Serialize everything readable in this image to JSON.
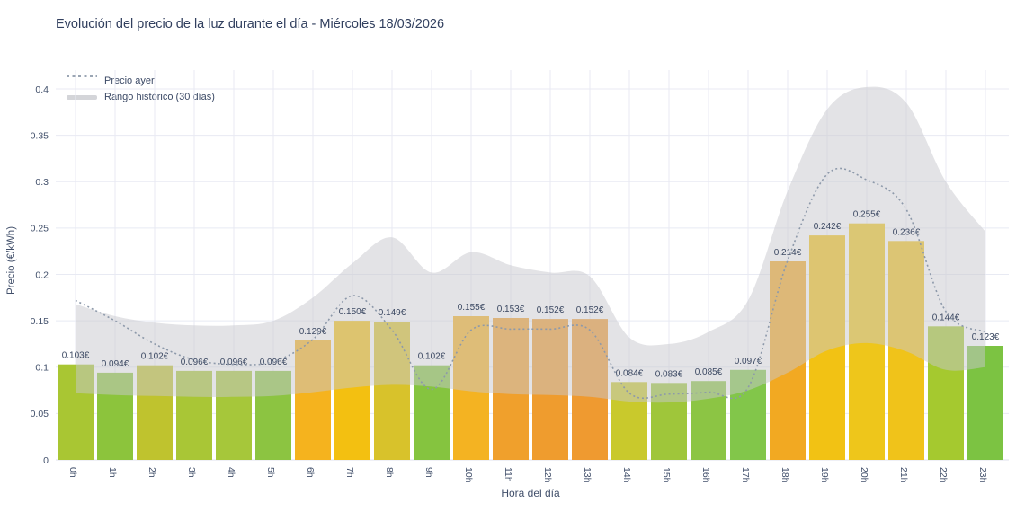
{
  "chart_data": {
    "type": "bar",
    "title": "Evolución del precio de la luz durante el día - Miércoles 18/03/2026",
    "xlabel": "Hora del día",
    "ylabel": "Precio (€/kWh)",
    "ylim": [
      0,
      0.42
    ],
    "grid": true,
    "legend_position": "top-left",
    "yticks": [
      0,
      0.05,
      0.1,
      0.15,
      0.2,
      0.25,
      0.3,
      0.35,
      0.4
    ],
    "ytick_labels": [
      "0",
      "0.05",
      "0.1",
      "0.15",
      "0.2",
      "0.25",
      "0.3",
      "0.35",
      "0.4"
    ],
    "categories": [
      "0h",
      "1h",
      "2h",
      "3h",
      "4h",
      "5h",
      "6h",
      "7h",
      "8h",
      "9h",
      "10h",
      "11h",
      "12h",
      "13h",
      "14h",
      "15h",
      "16h",
      "17h",
      "18h",
      "19h",
      "20h",
      "21h",
      "22h",
      "23h"
    ],
    "values": [
      0.103,
      0.094,
      0.102,
      0.096,
      0.096,
      0.096,
      0.129,
      0.15,
      0.149,
      0.102,
      0.155,
      0.153,
      0.152,
      0.152,
      0.084,
      0.083,
      0.085,
      0.097,
      0.214,
      0.242,
      0.255,
      0.236,
      0.144,
      0.123
    ],
    "value_labels": [
      "0.103€",
      "0.094€",
      "0.102€",
      "0.096€",
      "0.096€",
      "0.096€",
      "0.129€",
      "0.150€",
      "0.149€",
      "0.102€",
      "0.155€",
      "0.153€",
      "0.152€",
      "0.152€",
      "0.084€",
      "0.083€",
      "0.085€",
      "0.097€",
      "0.214€",
      "0.242€",
      "0.255€",
      "0.236€",
      "0.144€",
      "0.123€"
    ],
    "bar_colors": [
      "#a9c633",
      "#8cc43c",
      "#bfc32e",
      "#a9c636",
      "#a6c73a",
      "#8cc441",
      "#f5b31e",
      "#f3c011",
      "#d8c22b",
      "#85c43f",
      "#f4b322",
      "#f0a02c",
      "#ef9c2e",
      "#ef9a30",
      "#c9c92c",
      "#9fc63a",
      "#8cc544",
      "#82c64a",
      "#f2a922",
      "#f2c214",
      "#eec61b",
      "#f0c31a",
      "#a5c92f",
      "#7cc342"
    ],
    "series": [
      {
        "name": "Precio ayer",
        "type": "line-dotted",
        "values": [
          0.172,
          0.15,
          0.125,
          0.108,
          0.103,
          0.106,
          0.13,
          0.177,
          0.14,
          0.076,
          0.14,
          0.141,
          0.141,
          0.14,
          0.072,
          0.071,
          0.073,
          0.078,
          0.215,
          0.308,
          0.302,
          0.27,
          0.16,
          0.138
        ]
      },
      {
        "name": "Rango histórico (30 días)",
        "type": "band",
        "upper": [
          0.168,
          0.155,
          0.148,
          0.145,
          0.145,
          0.15,
          0.175,
          0.212,
          0.24,
          0.202,
          0.224,
          0.21,
          0.202,
          0.198,
          0.132,
          0.125,
          0.138,
          0.172,
          0.29,
          0.378,
          0.402,
          0.385,
          0.3,
          0.246
        ],
        "lower": [
          0.072,
          0.07,
          0.069,
          0.068,
          0.068,
          0.069,
          0.073,
          0.078,
          0.081,
          0.079,
          0.074,
          0.071,
          0.07,
          0.068,
          0.063,
          0.062,
          0.066,
          0.075,
          0.094,
          0.118,
          0.126,
          0.117,
          0.097,
          0.1
        ]
      }
    ],
    "colors": {
      "band_fill": "rgba(199,200,206,0.5)",
      "dashed_line": "#8d99aa",
      "grid": "#e8eaf3",
      "zero_line": "#dfe2ec",
      "title_text": "#32405f",
      "tick_text": "#42506b",
      "value_label_text": "#3b4862"
    }
  },
  "legend": {
    "items": [
      {
        "label": "Precio ayer"
      },
      {
        "label": "Rango histórico (30 días)"
      }
    ]
  }
}
